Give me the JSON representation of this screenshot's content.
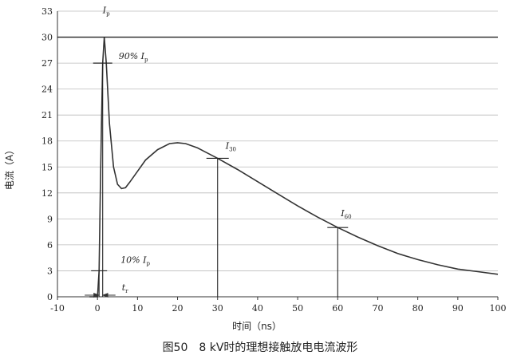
{
  "chart_data": {
    "type": "line",
    "title": "图50　8 kV时的理想接触放电电流波形",
    "x_label": "时间（ns）",
    "y_label": "电流（A）",
    "x": [
      -2,
      0,
      0.4,
      0.7,
      1,
      1.3,
      1.7,
      2.2,
      3,
      4,
      5,
      6,
      7,
      8,
      10,
      12,
      15,
      18,
      20,
      22,
      25,
      30,
      35,
      40,
      45,
      50,
      55,
      60,
      65,
      70,
      75,
      80,
      85,
      90,
      95,
      100
    ],
    "values": [
      0,
      0,
      3,
      12,
      20,
      27,
      30,
      27,
      20,
      15,
      13,
      12.5,
      12.6,
      13.2,
      14.5,
      15.8,
      17,
      17.7,
      17.8,
      17.7,
      17.2,
      16,
      14.7,
      13.3,
      11.9,
      10.5,
      9.2,
      8,
      6.9,
      5.9,
      5,
      4.3,
      3.7,
      3.2,
      2.9,
      2.6
    ],
    "color": "#333333",
    "xlim": [
      -10,
      100
    ],
    "xticks": [
      -10,
      0,
      10,
      20,
      30,
      40,
      50,
      60,
      70,
      80,
      90,
      100
    ],
    "ylim": [
      0,
      33
    ],
    "yticks": [
      0,
      3,
      6,
      9,
      12,
      15,
      18,
      21,
      24,
      27,
      30,
      33
    ],
    "grid": true,
    "markers": [
      {
        "label": "I",
        "sub": "p",
        "x": 1.7,
        "y": 30
      },
      {
        "label": "90% I",
        "sub": "p",
        "x": 1.3,
        "y": 27
      },
      {
        "label": "I",
        "sub": "30",
        "x": 30,
        "y": 16
      },
      {
        "label": "I",
        "sub": "60",
        "x": 60,
        "y": 8
      },
      {
        "label": "10% I",
        "sub": "p",
        "x": 0.4,
        "y": 3
      }
    ],
    "rise_time": {
      "label": "t",
      "sub": "r"
    }
  }
}
